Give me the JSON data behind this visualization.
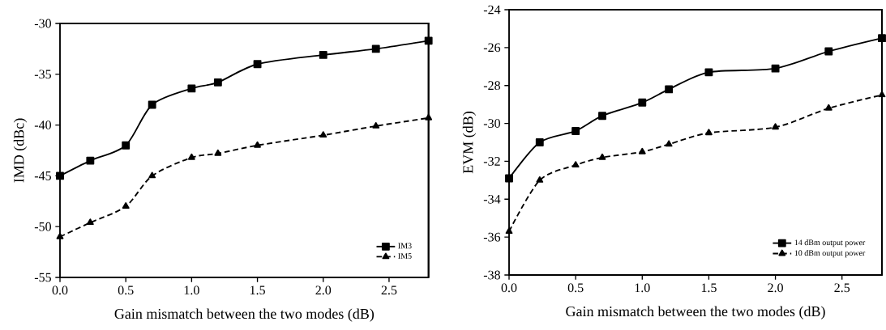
{
  "chart_data": [
    {
      "type": "line",
      "xlabel": "Gain mismatch between the two modes (dB)",
      "ylabel": "IMD (dBc)",
      "x": [
        0,
        0.23,
        0.5,
        0.7,
        1.0,
        1.2,
        1.5,
        2.0,
        2.4,
        2.8
      ],
      "series": [
        {
          "name": "IM3",
          "color": "#000000",
          "marker": "square",
          "line_style": "solid",
          "values": [
            -45,
            -43.5,
            -42,
            -38,
            -36.4,
            -35.8,
            -34,
            -33.1,
            -32.5,
            -31.7
          ]
        },
        {
          "name": "IM5",
          "color": "#000000",
          "marker": "triangle",
          "line_style": "dashed",
          "values": [
            -51,
            -49.6,
            -48,
            -45,
            -43.2,
            -42.8,
            -42,
            -41,
            -40.1,
            -39.3
          ]
        }
      ],
      "xlim": [
        0,
        2.8
      ],
      "xticks": [
        {
          "value": 0,
          "label": "0.0"
        },
        0.5,
        {
          "value": 1,
          "label": "1.0"
        },
        1.5,
        {
          "value": 2,
          "label": "2.0"
        },
        2.5
      ],
      "ylim": [
        -55,
        -30
      ],
      "yticks": [
        -55,
        -50,
        -45,
        -40,
        -35,
        -30
      ],
      "legend": "bottom right",
      "grid": false
    },
    {
      "type": "line",
      "xlabel": "Gain mismatch between the two modes (dB)",
      "ylabel": "EVM (dB)",
      "x": [
        0,
        0.23,
        0.5,
        0.7,
        1.0,
        1.2,
        1.5,
        2.0,
        2.4,
        2.8
      ],
      "series": [
        {
          "name": "14 dBm output power",
          "color": "#000000",
          "marker": "square",
          "line_style": "solid",
          "values": [
            -32.9,
            -31,
            -30.4,
            -29.6,
            -28.9,
            -28.2,
            -27.3,
            -27.1,
            -26.2,
            -25.5
          ]
        },
        {
          "name": "10 dBm output power",
          "color": "#000000",
          "marker": "triangle",
          "line_style": "dashed",
          "values": [
            -35.7,
            -33,
            -32.2,
            -31.8,
            -31.5,
            -31.1,
            -30.5,
            -30.2,
            -29.2,
            -28.5
          ]
        }
      ],
      "xlim": [
        0,
        2.8
      ],
      "xticks": [
        {
          "value": 0,
          "label": "0.0"
        },
        0.5,
        {
          "value": 1,
          "label": "1.0"
        },
        1.5,
        {
          "value": 2,
          "label": "2.0"
        },
        2.5
      ],
      "ylim": [
        -38,
        -24
      ],
      "yticks": [
        -38,
        -36,
        -34,
        -32,
        -30,
        -28,
        -26,
        -24
      ],
      "legend": "bottom right",
      "grid": false
    }
  ]
}
